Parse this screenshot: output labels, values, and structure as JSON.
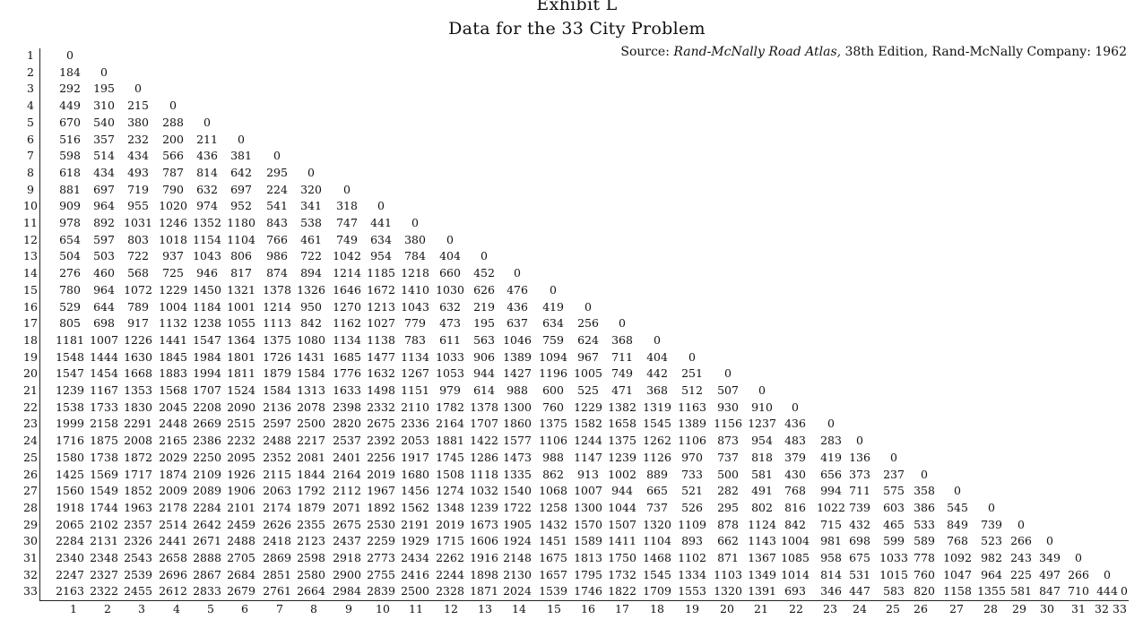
{
  "header": {
    "title": "Exhibit L",
    "subtitle": "Data for the 33 City Problem"
  },
  "source": {
    "prefix": "Source: ",
    "italic": "Rand-McNally Road Atlas,",
    "suffix": " 38th Edition, Rand-McNally Company: 1962"
  },
  "row_labels": [
    "1",
    "2",
    "3",
    "4",
    "5",
    "6",
    "7",
    "8",
    "9",
    "10",
    "11",
    "12",
    "13",
    "14",
    "15",
    "16",
    "17",
    "18",
    "19",
    "20",
    "21",
    "22",
    "23",
    "24",
    "25",
    "26",
    "27",
    "28",
    "29",
    "30",
    "31",
    "32",
    "33"
  ],
  "col_labels": [
    "1",
    "2",
    "3",
    "4",
    "5",
    "6",
    "7",
    "8",
    "9",
    "10",
    "11",
    "12",
    "13",
    "14",
    "15",
    "16",
    "17",
    "18",
    "19",
    "20",
    "21",
    "22",
    "23",
    "24",
    "25",
    "26",
    "27",
    "28",
    "29",
    "30",
    "31",
    "32",
    "33"
  ],
  "chart_data": {
    "type": "table",
    "rows": [
      [
        "0"
      ],
      [
        "184",
        "0"
      ],
      [
        "292",
        "195",
        "0"
      ],
      [
        "449",
        "310",
        "215",
        "0"
      ],
      [
        "670",
        "540",
        "380",
        "288",
        "0"
      ],
      [
        "516",
        "357",
        "232",
        "200",
        "211",
        "0"
      ],
      [
        "598",
        "514",
        "434",
        "566",
        "436",
        "381",
        "0"
      ],
      [
        "618",
        "434",
        "493",
        "787",
        "814",
        "642",
        "295",
        "0"
      ],
      [
        "881",
        "697",
        "719",
        "790",
        "632",
        "697",
        "224",
        "320",
        "0"
      ],
      [
        "909",
        "964",
        "955",
        "1020",
        "974",
        "952",
        "541",
        "341",
        "318",
        "0"
      ],
      [
        "978",
        "892",
        "1031",
        "1246",
        "1352",
        "1180",
        "843",
        "538",
        "747",
        "441",
        "0"
      ],
      [
        "654",
        "597",
        "803",
        "1018",
        "1154",
        "1104",
        "766",
        "461",
        "749",
        "634",
        "380",
        "0"
      ],
      [
        "504",
        "503",
        "722",
        "937",
        "1043",
        "806",
        "986",
        "722",
        "1042",
        "954",
        "784",
        "404",
        "0"
      ],
      [
        "276",
        "460",
        "568",
        "725",
        "946",
        "817",
        "874",
        "894",
        "1214",
        "1185",
        "1218",
        "660",
        "452",
        "0"
      ],
      [
        "780",
        "964",
        "1072",
        "1229",
        "1450",
        "1321",
        "1378",
        "1326",
        "1646",
        "1672",
        "1410",
        "1030",
        "626",
        "476",
        "0"
      ],
      [
        "529",
        "644",
        "789",
        "1004",
        "1184",
        "1001",
        "1214",
        "950",
        "1270",
        "1213",
        "1043",
        "632",
        "219",
        "436",
        "419",
        "0"
      ],
      [
        "805",
        "698",
        "917",
        "1132",
        "1238",
        "1055",
        "1113",
        "842",
        "1162",
        "1027",
        "779",
        "473",
        "195",
        "637",
        "634",
        "256",
        "0"
      ],
      [
        "1181",
        "1007",
        "1226",
        "1441",
        "1547",
        "1364",
        "1375",
        "1080",
        "1134",
        "1138",
        "783",
        "611",
        "563",
        "1046",
        "759",
        "624",
        "368",
        "0"
      ],
      [
        "1548",
        "1444",
        "1630",
        "1845",
        "1984",
        "1801",
        "1726",
        "1431",
        "1685",
        "1477",
        "1134",
        "1033",
        "906",
        "1389",
        "1094",
        "967",
        "711",
        "404",
        "0"
      ],
      [
        "1547",
        "1454",
        "1668",
        "1883",
        "1994",
        "1811",
        "1879",
        "1584",
        "1776",
        "1632",
        "1267",
        "1053",
        "944",
        "1427",
        "1196",
        "1005",
        "749",
        "442",
        "251",
        "0"
      ],
      [
        "1239",
        "1167",
        "1353",
        "1568",
        "1707",
        "1524",
        "1584",
        "1313",
        "1633",
        "1498",
        "1151",
        "979",
        "614",
        "988",
        "600",
        "525",
        "471",
        "368",
        "512",
        "507",
        "0"
      ],
      [
        "1538",
        "1733",
        "1830",
        "2045",
        "2208",
        "2090",
        "2136",
        "2078",
        "2398",
        "2332",
        "2110",
        "1782",
        "1378",
        "1300",
        "760",
        "1229",
        "1382",
        "1319",
        "1163",
        "930",
        "910",
        "0"
      ],
      [
        "1999",
        "2158",
        "2291",
        "2448",
        "2669",
        "2515",
        "2597",
        "2500",
        "2820",
        "2675",
        "2336",
        "2164",
        "1707",
        "1860",
        "1375",
        "1582",
        "1658",
        "1545",
        "1389",
        "1156",
        "1237",
        "436",
        "0"
      ],
      [
        "1716",
        "1875",
        "2008",
        "2165",
        "2386",
        "2232",
        "2488",
        "2217",
        "2537",
        "2392",
        "2053",
        "1881",
        "1422",
        "1577",
        "1106",
        "1244",
        "1375",
        "1262",
        "1106",
        "873",
        "954",
        "483",
        "283",
        "0"
      ],
      [
        "1580",
        "1738",
        "1872",
        "2029",
        "2250",
        "2095",
        "2352",
        "2081",
        "2401",
        "2256",
        "1917",
        "1745",
        "1286",
        "1473",
        "988",
        "1147",
        "1239",
        "1126",
        "970",
        "737",
        "818",
        "379",
        "419",
        "136",
        "0"
      ],
      [
        "1425",
        "1569",
        "1717",
        "1874",
        "2109",
        "1926",
        "2115",
        "1844",
        "2164",
        "2019",
        "1680",
        "1508",
        "1118",
        "1335",
        "862",
        "913",
        "1002",
        "889",
        "733",
        "500",
        "581",
        "430",
        "656",
        "373",
        "237",
        "0"
      ],
      [
        "1560",
        "1549",
        "1852",
        "2009",
        "2089",
        "1906",
        "2063",
        "1792",
        "2112",
        "1967",
        "1456",
        "1274",
        "1032",
        "1540",
        "1068",
        "1007",
        "944",
        "665",
        "521",
        "282",
        "491",
        "768",
        "994",
        "711",
        "575",
        "358",
        "0"
      ],
      [
        "1918",
        "1744",
        "1963",
        "2178",
        "2284",
        "2101",
        "2174",
        "1879",
        "2071",
        "1892",
        "1562",
        "1348",
        "1239",
        "1722",
        "1258",
        "1300",
        "1044",
        "737",
        "526",
        "295",
        "802",
        "816",
        "1022",
        "739",
        "603",
        "386",
        "545",
        "0"
      ],
      [
        "2065",
        "2102",
        "2357",
        "2514",
        "2642",
        "2459",
        "2626",
        "2355",
        "2675",
        "2530",
        "2191",
        "2019",
        "1673",
        "1905",
        "1432",
        "1570",
        "1507",
        "1320",
        "1109",
        "878",
        "1124",
        "842",
        "715",
        "432",
        "465",
        "533",
        "849",
        "739",
        "0"
      ],
      [
        "2284",
        "2131",
        "2326",
        "2441",
        "2671",
        "2488",
        "2418",
        "2123",
        "2437",
        "2259",
        "1929",
        "1715",
        "1606",
        "1924",
        "1451",
        "1589",
        "1411",
        "1104",
        "893",
        "662",
        "1143",
        "1004",
        "981",
        "698",
        "599",
        "589",
        "768",
        "523",
        "266",
        "0"
      ],
      [
        "2340",
        "2348",
        "2543",
        "2658",
        "2888",
        "2705",
        "2869",
        "2598",
        "2918",
        "2773",
        "2434",
        "2262",
        "1916",
        "2148",
        "1675",
        "1813",
        "1750",
        "1468",
        "1102",
        "871",
        "1367",
        "1085",
        "958",
        "675",
        "1033",
        "778",
        "1092",
        "982",
        "243",
        "349",
        "0"
      ],
      [
        "2247",
        "2327",
        "2539",
        "2696",
        "2867",
        "2684",
        "2851",
        "2580",
        "2900",
        "2755",
        "2416",
        "2244",
        "1898",
        "2130",
        "1657",
        "1795",
        "1732",
        "1545",
        "1334",
        "1103",
        "1349",
        "1014",
        "814",
        "531",
        "1015",
        "760",
        "1047",
        "964",
        "225",
        "497",
        "266",
        "0"
      ],
      [
        "2163",
        "2322",
        "2455",
        "2612",
        "2833",
        "2679",
        "2761",
        "2664",
        "2984",
        "2839",
        "2500",
        "2328",
        "1871",
        "2024",
        "1539",
        "1746",
        "1822",
        "1709",
        "1553",
        "1320",
        "1391",
        "693",
        "346",
        "447",
        "583",
        "820",
        "1158",
        "1355",
        "581",
        "847",
        "710",
        "444",
        "0"
      ]
    ]
  }
}
